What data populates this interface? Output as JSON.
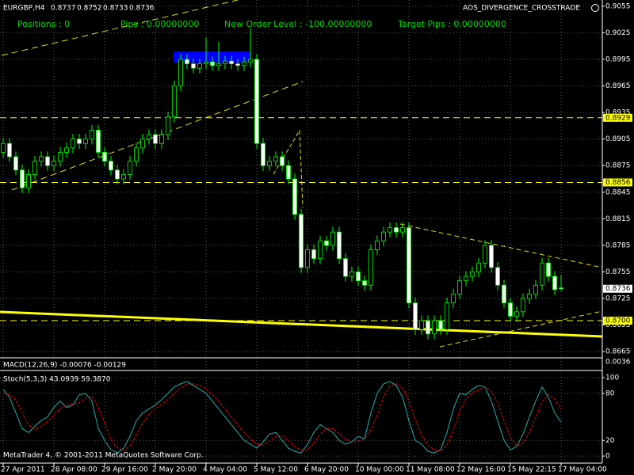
{
  "chart_data": {
    "type": "candlestick",
    "symbol_label": "EURGBP,H4",
    "quote_labels": [
      "0.8737",
      "0.8752",
      "0.8733",
      "0.8736"
    ],
    "indicator_name": "AOS_DIVERGENCE_CROSSTRADE",
    "status_texts": [
      "Positions : 0",
      "Pips : 0.00000000",
      "New Order Level : -100.00000000",
      "Target Pips : 0.00000000"
    ],
    "categories": [
      "27 Apr 2011",
      null,
      null,
      null,
      null,
      null,
      null,
      null,
      "28 Apr 08:00",
      null,
      null,
      null,
      null,
      null,
      null,
      null,
      "29 Apr 16:00",
      null,
      null,
      null,
      null,
      null,
      null,
      null,
      "2 May 20:00",
      null,
      null,
      null,
      null,
      null,
      null,
      null,
      "4 May 04:00",
      null,
      null,
      null,
      null,
      null,
      null,
      null,
      "5 May 12:00",
      null,
      null,
      null,
      null,
      null,
      null,
      null,
      "6 May 20:00",
      null,
      null,
      null,
      null,
      null,
      null,
      null,
      "10 May 00:00",
      null,
      null,
      null,
      null,
      null,
      null,
      null,
      "11 May 08:00",
      null,
      null,
      null,
      null,
      null,
      null,
      null,
      "12 May 16:00",
      null,
      null,
      null,
      null,
      null,
      null,
      null,
      "15 May 22:15",
      null,
      null,
      null,
      null,
      null,
      null,
      null,
      "17 May 04:00"
    ],
    "open": [
      0.889,
      0.89,
      0.8885,
      0.887,
      0.885,
      0.8865,
      0.888,
      0.8885,
      0.8875,
      0.888,
      0.889,
      0.8895,
      0.8905,
      0.89,
      0.8905,
      0.8915,
      0.889,
      0.888,
      0.887,
      0.886,
      0.8865,
      0.888,
      0.8895,
      0.8905,
      0.891,
      0.89,
      0.891,
      0.893,
      0.8965,
      0.8995,
      0.899,
      0.8985,
      0.899,
      0.8992,
      0.8988,
      0.899,
      0.8993,
      0.899,
      0.8988,
      0.8992,
      0.8995,
      0.89,
      0.8875,
      0.888,
      0.8885,
      0.8875,
      0.886,
      0.882,
      0.876,
      0.878,
      0.877,
      0.879,
      0.8785,
      0.88,
      0.877,
      0.875,
      0.8755,
      0.8745,
      0.874,
      0.878,
      0.879,
      0.88,
      0.8805,
      0.88,
      0.8805,
      0.872,
      0.869,
      0.87,
      0.8685,
      0.87,
      0.869,
      0.872,
      0.873,
      0.8745,
      0.875,
      0.8755,
      0.8765,
      0.8785,
      0.876,
      0.874,
      0.872,
      0.8705,
      0.871,
      0.8725,
      0.873,
      0.874,
      0.8765,
      0.875,
      0.8737
    ],
    "high": [
      0.8906,
      0.8906,
      0.8891,
      0.8876,
      0.8871,
      0.8886,
      0.8891,
      0.8891,
      0.8886,
      0.8896,
      0.8901,
      0.8911,
      0.8911,
      0.8911,
      0.8921,
      0.8921,
      0.8896,
      0.8886,
      0.8876,
      0.8871,
      0.8886,
      0.8901,
      0.8911,
      0.8916,
      0.8916,
      0.8916,
      0.8936,
      0.8971,
      0.9001,
      0.9001,
      0.8996,
      0.8996,
      0.902,
      0.8998,
      0.9015,
      0.8999,
      0.8999,
      0.8996,
      0.8998,
      0.903,
      0.9001,
      0.8906,
      0.8886,
      0.8891,
      0.8891,
      0.8881,
      0.8866,
      0.8826,
      0.8786,
      0.8786,
      0.8796,
      0.8796,
      0.8806,
      0.8806,
      0.8776,
      0.8761,
      0.8761,
      0.8751,
      0.8786,
      0.8796,
      0.8806,
      0.8811,
      0.8811,
      0.8811,
      0.8811,
      0.8726,
      0.8706,
      0.8706,
      0.8706,
      0.8706,
      0.8726,
      0.8736,
      0.8751,
      0.8756,
      0.8761,
      0.8771,
      0.8791,
      0.8791,
      0.8766,
      0.8746,
      0.8726,
      0.8716,
      0.8731,
      0.8736,
      0.8746,
      0.8771,
      0.8771,
      0.8756,
      0.8752
    ],
    "low": [
      0.8884,
      0.8879,
      0.8864,
      0.8844,
      0.8844,
      0.8859,
      0.8874,
      0.8869,
      0.8869,
      0.8874,
      0.8884,
      0.8889,
      0.8894,
      0.8894,
      0.8899,
      0.8884,
      0.8874,
      0.8864,
      0.8854,
      0.8854,
      0.8859,
      0.8874,
      0.8889,
      0.8899,
      0.8894,
      0.8894,
      0.8904,
      0.8924,
      0.8959,
      0.8984,
      0.8979,
      0.8979,
      0.8984,
      0.8982,
      0.8982,
      0.8984,
      0.8984,
      0.8982,
      0.8982,
      0.8986,
      0.8894,
      0.8869,
      0.8869,
      0.8874,
      0.8869,
      0.8854,
      0.8814,
      0.8754,
      0.8754,
      0.8764,
      0.8764,
      0.8779,
      0.8779,
      0.8764,
      0.8744,
      0.8744,
      0.8739,
      0.8734,
      0.8734,
      0.8774,
      0.8784,
      0.8794,
      0.8794,
      0.8794,
      0.8714,
      0.8684,
      0.8684,
      0.8679,
      0.8679,
      0.8684,
      0.8684,
      0.8714,
      0.8724,
      0.8739,
      0.8744,
      0.8749,
      0.8759,
      0.8754,
      0.8734,
      0.8714,
      0.8699,
      0.8699,
      0.8704,
      0.8719,
      0.8724,
      0.8734,
      0.8744,
      0.8729,
      0.8733
    ],
    "close": [
      0.89,
      0.8885,
      0.887,
      0.885,
      0.8865,
      0.888,
      0.8885,
      0.8875,
      0.888,
      0.889,
      0.8895,
      0.8905,
      0.89,
      0.8905,
      0.8915,
      0.889,
      0.888,
      0.887,
      0.886,
      0.8865,
      0.888,
      0.8895,
      0.8905,
      0.891,
      0.89,
      0.891,
      0.893,
      0.8965,
      0.8995,
      0.899,
      0.8985,
      0.899,
      0.8992,
      0.8988,
      0.899,
      0.8993,
      0.899,
      0.8988,
      0.8992,
      0.8995,
      0.89,
      0.8875,
      0.888,
      0.8885,
      0.8875,
      0.886,
      0.882,
      0.876,
      0.878,
      0.877,
      0.879,
      0.8785,
      0.88,
      0.877,
      0.875,
      0.8755,
      0.8745,
      0.874,
      0.878,
      0.879,
      0.88,
      0.8805,
      0.88,
      0.8805,
      0.872,
      0.869,
      0.87,
      0.8685,
      0.87,
      0.869,
      0.872,
      0.873,
      0.8745,
      0.875,
      0.8755,
      0.8765,
      0.8785,
      0.876,
      0.874,
      0.872,
      0.8705,
      0.871,
      0.8725,
      0.873,
      0.874,
      0.8765,
      0.875,
      0.8735,
      0.8736
    ],
    "ylim": [
      0.9062,
      0.8658
    ],
    "yticks": [
      0.9055,
      0.9025,
      0.8995,
      0.8965,
      0.8935,
      0.8905,
      0.8875,
      0.8845,
      0.8815,
      0.8785,
      0.8755,
      0.8725,
      0.8695,
      0.8665
    ],
    "grid": true,
    "colors": {
      "up": "#000000",
      "down": "#ffffff",
      "wick": "#00ff00",
      "grid": "#5a5a5a",
      "text": "#ffffff",
      "status": "#00dd00"
    },
    "levels": [
      {
        "value": 0.8929,
        "label": "0.8929",
        "color": "#ffff00",
        "line": true
      },
      {
        "value": 0.8856,
        "label": "0.8856",
        "color": "#ffff00",
        "line": true
      },
      {
        "value": 0.8736,
        "label": "0.8736",
        "color": "#ffffff",
        "line": false
      },
      {
        "value": 0.87,
        "label": "0.8700",
        "color": "#ffff00",
        "line": true
      }
    ],
    "macd": {
      "label": "MACD(12,26,9) -0.00076 -0.00129",
      "yticks": [
        0.0036
      ]
    },
    "stochastic": {
      "type": "line",
      "label": "Stoch(5,3,3) 43.0939 59.3870",
      "ylim": [
        -9,
        107
      ],
      "yticks": [
        100,
        80,
        20,
        0
      ],
      "series": [
        {
          "color": "#20b2aa",
          "dashed": false,
          "values": [
            85,
            75,
            55,
            35,
            30,
            38,
            45,
            50,
            62,
            70,
            62,
            65,
            78,
            80,
            70,
            35,
            20,
            8,
            4,
            10,
            25,
            45,
            55,
            60,
            65,
            72,
            80,
            88,
            92,
            95,
            90,
            85,
            80,
            70,
            60,
            50,
            40,
            30,
            20,
            15,
            10,
            18,
            28,
            30,
            20,
            10,
            6,
            4,
            15,
            30,
            40,
            35,
            30,
            20,
            15,
            18,
            25,
            22,
            55,
            80,
            92,
            95,
            90,
            75,
            45,
            20,
            15,
            6,
            4,
            8,
            30,
            60,
            80,
            78,
            85,
            90,
            88,
            70,
            45,
            20,
            8,
            12,
            28,
            50,
            70,
            88,
            75,
            55,
            43.0939
          ]
        },
        {
          "color": "#ff0000",
          "dashed": true,
          "values": [
            80,
            78,
            72,
            55,
            40,
            34,
            38,
            44,
            52,
            61,
            65,
            66,
            68,
            74,
            76,
            62,
            42,
            21,
            11,
            7,
            13,
            27,
            42,
            53,
            60,
            66,
            72,
            80,
            87,
            92,
            92,
            90,
            85,
            78,
            70,
            60,
            50,
            40,
            30,
            22,
            15,
            14,
            19,
            25,
            26,
            20,
            12,
            7,
            8,
            16,
            28,
            35,
            35,
            28,
            22,
            18,
            19,
            22,
            34,
            52,
            76,
            89,
            92,
            87,
            70,
            47,
            27,
            14,
            8,
            6,
            14,
            33,
            57,
            73,
            81,
            84,
            88,
            83,
            68,
            45,
            24,
            13,
            16,
            30,
            49,
            69,
            78,
            73,
            59.387
          ]
        }
      ]
    },
    "footer": "MetaTrader 4, © 2001-2011 MetaQuotes Software Corp."
  }
}
